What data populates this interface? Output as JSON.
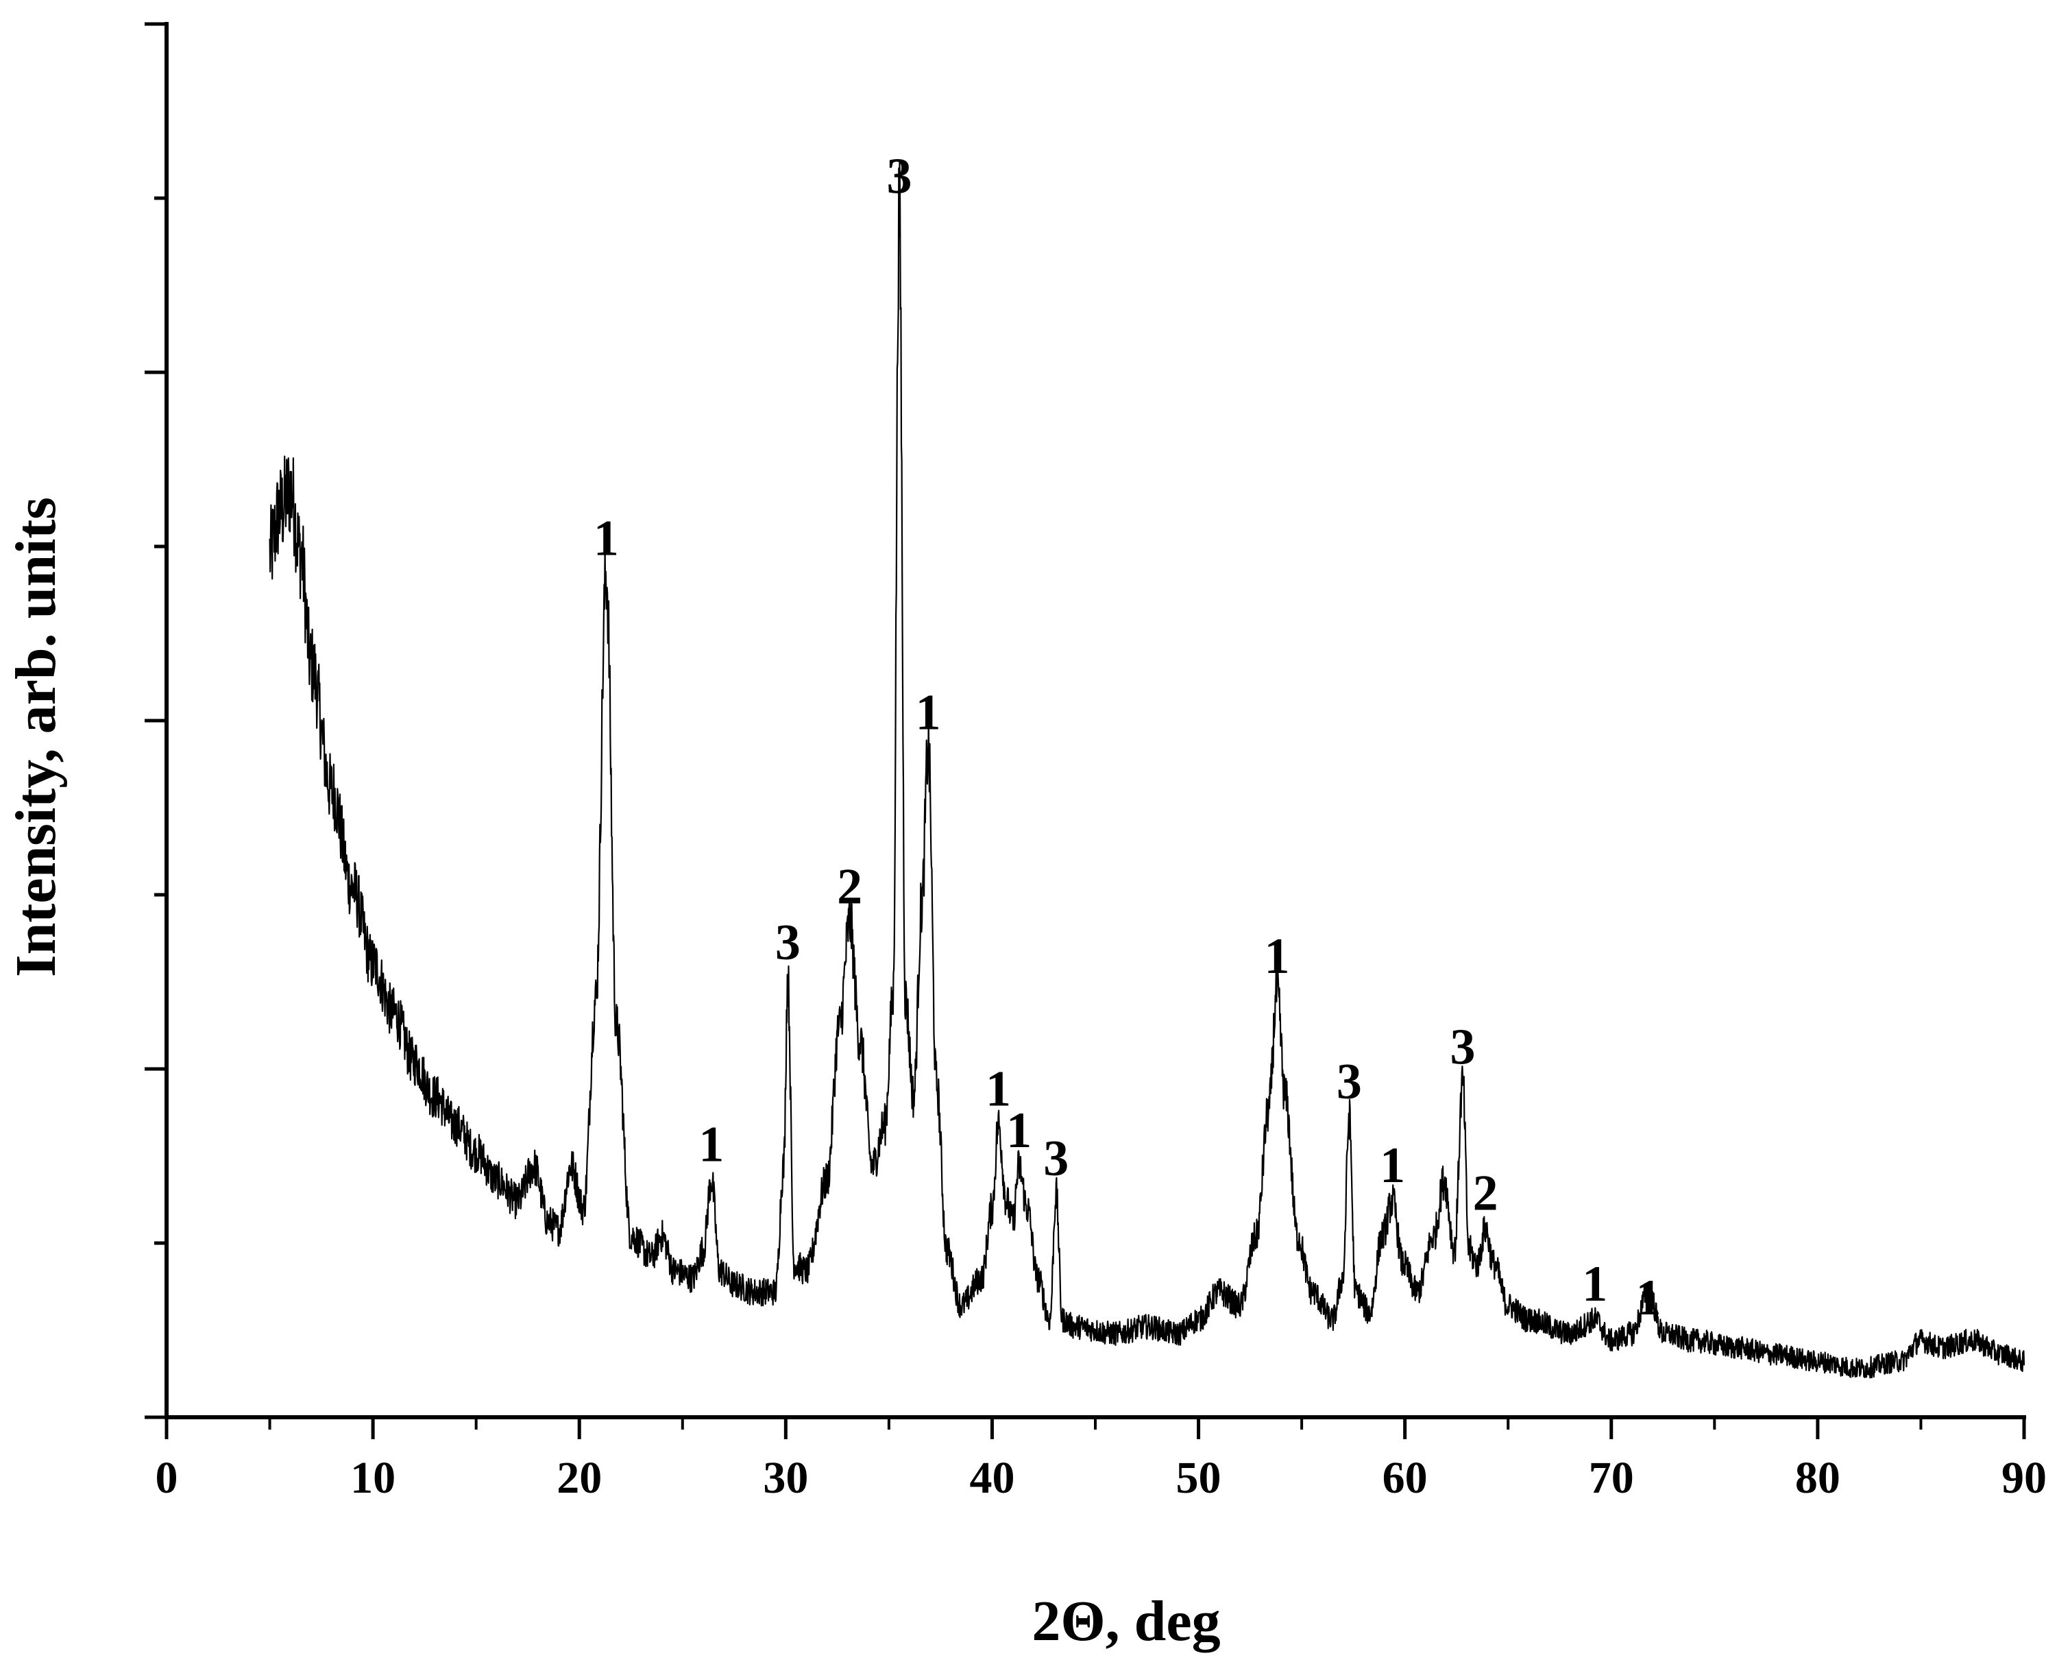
{
  "chart_data": {
    "type": "line",
    "title": "",
    "xlabel": "2Θ, deg",
    "ylabel": "Intensity, arb. units",
    "xlim": [
      0,
      90
    ],
    "ylim": [
      0,
      100
    ],
    "x_ticks": [
      0,
      10,
      20,
      30,
      40,
      50,
      60,
      70,
      80,
      90
    ],
    "y_tick_values": [
      0,
      12.5,
      25,
      37.5,
      50,
      62.5,
      75,
      87.5,
      100
    ],
    "y_tick_labels_shown": false,
    "grid": false,
    "legend": "none",
    "line_color": "#000000",
    "series": [
      {
        "x": [
          5.0,
          5.5,
          6.0,
          6.5,
          7.0,
          8.0,
          9.0,
          10.0,
          11.0,
          12.0,
          13.0,
          14.0,
          15.0,
          16.0,
          17.0,
          17.8,
          18.5,
          19.0,
          19.6,
          20.2,
          20.8,
          21.3,
          21.8,
          22.5,
          23.5,
          24.0,
          24.6,
          25.5,
          26.0,
          26.4,
          26.8,
          27.5,
          28.5,
          29.5,
          29.9,
          30.1,
          30.4,
          31.0,
          32.0,
          32.6,
          33.1,
          33.6,
          34.2,
          34.8,
          35.2,
          35.5,
          35.8,
          36.2,
          36.6,
          36.9,
          37.3,
          37.8,
          38.5,
          39.5,
          40.0,
          40.3,
          40.7,
          41.0,
          41.3,
          41.7,
          42.2,
          42.8,
          43.1,
          43.4,
          44.0,
          46.0,
          47.5,
          49.0,
          50.0,
          51.0,
          52.0,
          52.8,
          53.4,
          53.8,
          54.2,
          54.8,
          55.5,
          56.5,
          57.0,
          57.3,
          57.6,
          58.3,
          58.9,
          59.4,
          59.9,
          60.6,
          61.4,
          61.9,
          62.4,
          62.8,
          63.1,
          63.5,
          63.9,
          64.3,
          65.0,
          66.0,
          68.0,
          69.2,
          70.0,
          71.0,
          71.8,
          72.5,
          74.0,
          76.0,
          78.0,
          80.0,
          82.0,
          84.0,
          85.0,
          86.0,
          87.5,
          89.0,
          90.0
        ],
        "y": [
          62.0,
          65.0,
          66.5,
          62.0,
          54.0,
          45.0,
          38.0,
          32.5,
          29.0,
          25.5,
          23.0,
          21.0,
          19.0,
          17.0,
          15.5,
          18.0,
          14.0,
          13.5,
          18.0,
          15.0,
          30.0,
          60.5,
          28.0,
          13.0,
          11.5,
          13.0,
          10.5,
          10.0,
          12.0,
          17.0,
          10.5,
          9.5,
          9.0,
          9.0,
          18.0,
          31.5,
          11.0,
          10.5,
          17.0,
          28.0,
          35.5,
          27.0,
          18.0,
          21.0,
          30.0,
          86.5,
          30.0,
          23.0,
          37.0,
          48.0,
          24.0,
          12.0,
          8.0,
          10.0,
          15.0,
          21.0,
          15.5,
          14.0,
          18.0,
          15.0,
          10.0,
          7.0,
          16.0,
          7.0,
          6.5,
          6.0,
          6.5,
          6.0,
          7.0,
          9.0,
          8.0,
          13.0,
          22.0,
          30.5,
          23.0,
          13.0,
          9.0,
          7.0,
          10.0,
          21.5,
          9.0,
          7.5,
          13.0,
          15.5,
          11.0,
          9.0,
          13.0,
          17.0,
          12.0,
          24.0,
          12.0,
          11.0,
          13.5,
          11.0,
          8.0,
          7.0,
          6.0,
          7.0,
          5.5,
          6.0,
          9.0,
          6.0,
          5.5,
          5.0,
          4.5,
          4.0,
          3.5,
          4.0,
          5.5,
          5.0,
          5.5,
          4.5,
          4.0
        ]
      }
    ],
    "annotations": [
      {
        "text": "1",
        "x": 21.3,
        "y": 60.5
      },
      {
        "text": "1",
        "x": 26.4,
        "y": 17.0
      },
      {
        "text": "3",
        "x": 30.1,
        "y": 31.5
      },
      {
        "text": "2",
        "x": 33.1,
        "y": 35.5
      },
      {
        "text": "3",
        "x": 35.5,
        "y": 86.5
      },
      {
        "text": "1",
        "x": 36.9,
        "y": 48.0
      },
      {
        "text": "1",
        "x": 40.3,
        "y": 21.0
      },
      {
        "text": "1",
        "x": 41.3,
        "y": 18.0
      },
      {
        "text": "3",
        "x": 43.1,
        "y": 16.0
      },
      {
        "text": "1",
        "x": 53.8,
        "y": 30.5
      },
      {
        "text": "3",
        "x": 57.3,
        "y": 21.5
      },
      {
        "text": "1",
        "x": 59.4,
        "y": 15.5
      },
      {
        "text": "3",
        "x": 62.8,
        "y": 24.0
      },
      {
        "text": "2",
        "x": 63.9,
        "y": 13.5
      },
      {
        "text": "1",
        "x": 69.2,
        "y": 7.0
      },
      {
        "text": "1",
        "x": 71.8,
        "y": 6.0
      }
    ]
  }
}
